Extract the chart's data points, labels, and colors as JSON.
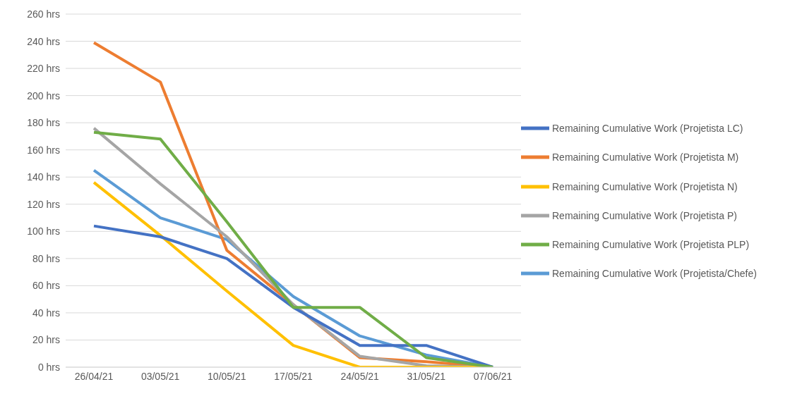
{
  "chart_data": {
    "type": "line",
    "categories": [
      "26/04/21",
      "03/05/21",
      "10/05/21",
      "17/05/21",
      "24/05/21",
      "31/05/21",
      "07/06/21"
    ],
    "series": [
      {
        "name": "Remaining Cumulative Work (Projetista/Chefe)",
        "color": "#5b9bd5",
        "values": [
          145,
          110,
          94,
          52,
          23,
          9,
          0
        ]
      },
      {
        "name": "Remaining Cumulative Work (Projetista M)",
        "color": "#ed7d31",
        "values": [
          239,
          210,
          86,
          46,
          7,
          4,
          0
        ]
      },
      {
        "name": "Remaining Cumulative Work (Projetista P)",
        "color": "#a5a5a5",
        "values": [
          176,
          135,
          96,
          46,
          8,
          1,
          0
        ]
      },
      {
        "name": "Remaining Cumulative Work (Projetista N)",
        "color": "#ffc000",
        "values": [
          136,
          97,
          56,
          16,
          0,
          0,
          0
        ]
      },
      {
        "name": "Remaining Cumulative Work (Projetista LC)",
        "color": "#4472c4",
        "values": [
          104,
          96,
          80,
          44,
          16,
          16,
          0
        ]
      },
      {
        "name": "Remaining Cumulative Work (Projetista PLP)",
        "color": "#70ad47",
        "values": [
          173,
          168,
          107,
          44,
          44,
          7,
          0
        ]
      }
    ],
    "ylim": [
      0,
      260
    ],
    "yticks": [
      {
        "value": 0,
        "label": "0 hrs"
      },
      {
        "value": 20,
        "label": "20 hrs"
      },
      {
        "value": 40,
        "label": "40 hrs"
      },
      {
        "value": 60,
        "label": "60 hrs"
      },
      {
        "value": 80,
        "label": "80 hrs"
      },
      {
        "value": 100,
        "label": "100 hrs"
      },
      {
        "value": 120,
        "label": "120 hrs"
      },
      {
        "value": 140,
        "label": "140 hrs"
      },
      {
        "value": 160,
        "label": "160 hrs"
      },
      {
        "value": 180,
        "label": "180 hrs"
      },
      {
        "value": 200,
        "label": "200 hrs"
      },
      {
        "value": 220,
        "label": "220 hrs"
      },
      {
        "value": 240,
        "label": "240 hrs"
      },
      {
        "value": 260,
        "label": "260 hrs"
      }
    ],
    "grid": "y",
    "legend": "right",
    "marker": "none",
    "line_style": "solid"
  }
}
